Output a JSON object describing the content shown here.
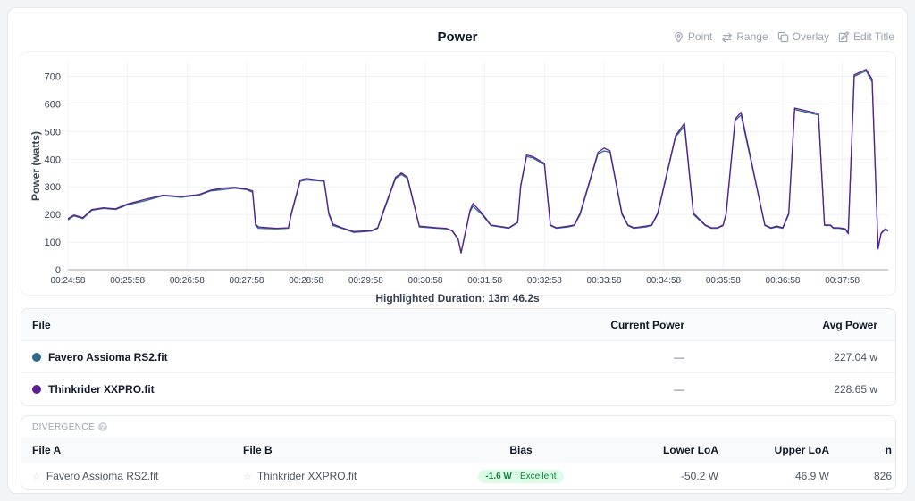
{
  "header": {
    "title": "Power",
    "tools": [
      {
        "label": "Point",
        "icon": "pin-icon"
      },
      {
        "label": "Range",
        "icon": "arrows-icon"
      },
      {
        "label": "Overlay",
        "icon": "overlay-icon"
      },
      {
        "label": "Edit Title",
        "icon": "edit-icon"
      }
    ]
  },
  "chart_data": {
    "type": "line",
    "title": "",
    "xlabel": "",
    "ylabel": "Power (watts)",
    "ylim": [
      0,
      750
    ],
    "yticks": [
      0,
      100,
      200,
      300,
      400,
      500,
      600,
      700
    ],
    "x_range": [
      "00:24:58",
      "00:38:44"
    ],
    "xticks": [
      "00:24:58",
      "00:25:58",
      "00:26:58",
      "00:27:58",
      "00:28:58",
      "00:29:58",
      "00:30:58",
      "00:31:58",
      "00:32:58",
      "00:33:58",
      "00:34:58",
      "00:35:58",
      "00:36:58",
      "00:37:58"
    ],
    "grid": true,
    "series": [
      {
        "name": "Favero Assioma RS2.fit",
        "color": "#2e6b8a",
        "x": [
          0,
          0.1,
          0.25,
          0.4,
          0.6,
          0.8,
          1.0,
          1.3,
          1.6,
          1.9,
          2.2,
          2.4,
          2.6,
          2.8,
          3.0,
          3.1,
          3.15,
          3.2,
          3.5,
          3.7,
          3.75,
          3.9,
          4.0,
          4.3,
          4.38,
          4.45,
          4.6,
          4.8,
          5.1,
          5.2,
          5.3,
          5.5,
          5.6,
          5.7,
          5.9,
          6.2,
          6.35,
          6.45,
          6.55,
          6.6,
          6.75,
          6.8,
          6.95,
          7.1,
          7.4,
          7.55,
          7.6,
          7.7,
          7.8,
          8.0,
          8.1,
          8.2,
          8.4,
          8.5,
          8.6,
          8.9,
          9.0,
          9.1,
          9.3,
          9.4,
          9.5,
          9.7,
          9.8,
          9.9,
          10.2,
          10.35,
          10.5,
          10.7,
          10.8,
          10.9,
          11.0,
          11.05,
          11.2,
          11.3,
          11.7,
          11.8,
          11.9,
          12.0,
          12.1,
          12.2,
          12.6,
          12.7,
          12.8,
          12.85,
          12.95,
          13.05,
          13.1,
          13.2,
          13.4,
          13.5,
          13.6,
          13.65,
          13.72,
          13.77
        ],
        "values": [
          180,
          195,
          185,
          215,
          222,
          218,
          235,
          250,
          268,
          262,
          270,
          285,
          290,
          295,
          290,
          280,
          160,
          150,
          148,
          150,
          200,
          320,
          325,
          320,
          200,
          160,
          150,
          135,
          140,
          150,
          210,
          330,
          345,
          330,
          155,
          150,
          148,
          140,
          110,
          60,
          210,
          230,
          200,
          160,
          150,
          170,
          300,
          410,
          405,
          380,
          160,
          150,
          155,
          160,
          200,
          420,
          430,
          425,
          200,
          160,
          150,
          155,
          160,
          200,
          480,
          520,
          200,
          160,
          150,
          150,
          160,
          200,
          540,
          560,
          160,
          150,
          155,
          150,
          200,
          580,
          560,
          160,
          160,
          150,
          150,
          145,
          130,
          700,
          720,
          680,
          80,
          130,
          145,
          140
        ]
      },
      {
        "name": "Thinkrider XXPRO.fit",
        "color": "#5b1f94",
        "x": [
          0,
          0.1,
          0.25,
          0.4,
          0.6,
          0.8,
          1.0,
          1.3,
          1.6,
          1.9,
          2.2,
          2.4,
          2.6,
          2.8,
          3.0,
          3.1,
          3.15,
          3.2,
          3.5,
          3.7,
          3.75,
          3.9,
          4.0,
          4.3,
          4.38,
          4.45,
          4.6,
          4.8,
          5.1,
          5.2,
          5.3,
          5.5,
          5.6,
          5.7,
          5.9,
          6.2,
          6.35,
          6.45,
          6.55,
          6.6,
          6.75,
          6.8,
          6.95,
          7.1,
          7.4,
          7.55,
          7.6,
          7.7,
          7.8,
          8.0,
          8.1,
          8.2,
          8.4,
          8.5,
          8.6,
          8.9,
          9.0,
          9.1,
          9.3,
          9.4,
          9.5,
          9.7,
          9.8,
          9.9,
          10.2,
          10.35,
          10.5,
          10.7,
          10.8,
          10.9,
          11.0,
          11.05,
          11.2,
          11.3,
          11.7,
          11.8,
          11.9,
          12.0,
          12.1,
          12.2,
          12.6,
          12.7,
          12.8,
          12.85,
          12.95,
          13.05,
          13.1,
          13.2,
          13.4,
          13.5,
          13.6,
          13.65,
          13.72,
          13.77
        ],
        "values": [
          185,
          198,
          188,
          218,
          224,
          220,
          238,
          255,
          270,
          265,
          272,
          288,
          295,
          298,
          292,
          285,
          165,
          155,
          150,
          152,
          205,
          325,
          330,
          322,
          205,
          165,
          152,
          138,
          142,
          152,
          215,
          335,
          350,
          335,
          158,
          152,
          150,
          142,
          112,
          62,
          215,
          240,
          205,
          162,
          152,
          172,
          305,
          415,
          410,
          385,
          162,
          152,
          158,
          162,
          205,
          425,
          440,
          430,
          205,
          162,
          152,
          158,
          162,
          205,
          485,
          530,
          205,
          162,
          152,
          152,
          162,
          205,
          545,
          570,
          162,
          152,
          158,
          152,
          205,
          585,
          565,
          162,
          162,
          152,
          152,
          148,
          132,
          705,
          725,
          690,
          75,
          132,
          148,
          142
        ]
      }
    ]
  },
  "highlight": "Highlighted Duration: 13m 46.2s",
  "files_table": {
    "headers": {
      "file": "File",
      "current": "Current Power",
      "avg": "Avg Power"
    },
    "rows": [
      {
        "file": "Favero Assioma RS2.fit",
        "color": "#2e6b8a",
        "current": "—",
        "avg": "227.04 w"
      },
      {
        "file": "Thinkrider XXPRO.fit",
        "color": "#5b1f94",
        "current": "—",
        "avg": "228.65 w"
      }
    ]
  },
  "divergence": {
    "label": "DIVERGENCE",
    "headers": {
      "file_a": "File A",
      "file_b": "File B",
      "bias": "Bias",
      "lower": "Lower LoA",
      "upper": "Upper LoA",
      "n": "n"
    },
    "rows": [
      {
        "file_a": "Favero Assioma RS2.fit",
        "file_b": "Thinkrider XXPRO.fit",
        "bias_value": "-1.6 W",
        "bias_rating": "· Excellent",
        "lower": "-50.2 W",
        "upper": "46.9 W",
        "n": "826"
      }
    ]
  }
}
